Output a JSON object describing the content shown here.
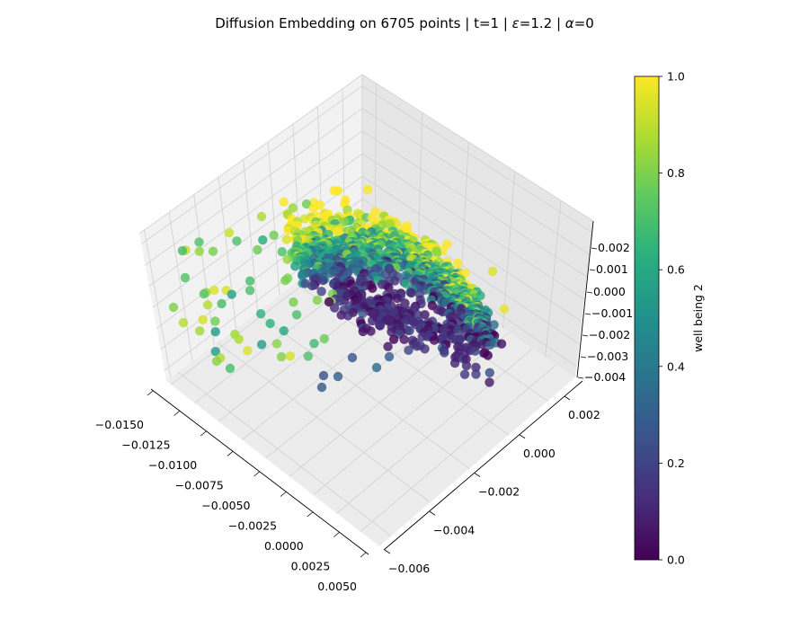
{
  "chart_data": {
    "type": "scatter",
    "projection": "3d",
    "title_parts": [
      "Diffusion Embedding on 6705 points | t=1 | ",
      "ε",
      "=1.2 | ",
      "α",
      "=0"
    ],
    "colormap": "viridis",
    "colormap_stops": [
      "#440154",
      "#472d7b",
      "#3b528b",
      "#2c728e",
      "#21918c",
      "#28ae80",
      "#5ec962",
      "#addc30",
      "#fde725"
    ],
    "colorbar": {
      "label": "well being 2",
      "range": [
        0.0,
        1.0
      ],
      "ticks": [
        "0.0",
        "0.2",
        "0.4",
        "0.6",
        "0.8",
        "1.0"
      ]
    },
    "x_axis": {
      "range": [
        -0.0155,
        0.0052
      ],
      "ticks": [
        "−0.0150",
        "−0.0125",
        "−0.0100",
        "−0.0075",
        "−0.0050",
        "−0.0025",
        "0.0000",
        "0.0025",
        "0.0050"
      ]
    },
    "y_axis": {
      "range": [
        -0.0063,
        0.0038
      ],
      "ticks": [
        "−0.006",
        "−0.004",
        "−0.002",
        "0.000",
        "0.002"
      ]
    },
    "z_axis": {
      "range": [
        -0.0043,
        0.0028
      ],
      "ticks": [
        "−0.004",
        "−0.003",
        "−0.002",
        "−0.001",
        "0.000",
        "0.001",
        "0.002"
      ]
    },
    "grid": true,
    "point_count_note": "6705"
  }
}
